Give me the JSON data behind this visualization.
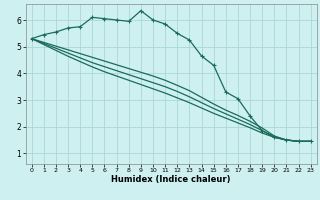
{
  "xlabel": "Humidex (Indice chaleur)",
  "background_color": "#cff0f0",
  "grid_color": "#aad8d8",
  "line_color": "#1a6b5a",
  "x_ticks": [
    0,
    1,
    2,
    3,
    4,
    5,
    6,
    7,
    8,
    9,
    10,
    11,
    12,
    13,
    14,
    15,
    16,
    17,
    18,
    19,
    20,
    21,
    22,
    23
  ],
  "y_ticks": [
    1,
    2,
    3,
    4,
    5,
    6
  ],
  "ylim": [
    0.6,
    6.6
  ],
  "xlim": [
    -0.5,
    23.5
  ],
  "series1_x": [
    0,
    1,
    2,
    3,
    4,
    5,
    6,
    7,
    8,
    9,
    10,
    11,
    12,
    13,
    14,
    15,
    16,
    17,
    18,
    19,
    20,
    21,
    22,
    23
  ],
  "series1_y": [
    5.3,
    5.45,
    5.55,
    5.7,
    5.75,
    6.1,
    6.05,
    6.0,
    5.95,
    6.35,
    6.0,
    5.85,
    5.5,
    5.25,
    4.65,
    4.3,
    3.3,
    3.05,
    2.4,
    1.85,
    1.6,
    1.5,
    1.45,
    1.45
  ],
  "series2_x": [
    0,
    1,
    2,
    3,
    4,
    5,
    6,
    7,
    8,
    9,
    10,
    11,
    12,
    13,
    14,
    15,
    16,
    17,
    18,
    19,
    20,
    21,
    22,
    23
  ],
  "series2_y": [
    5.3,
    5.16,
    5.02,
    4.88,
    4.74,
    4.6,
    4.46,
    4.32,
    4.18,
    4.04,
    3.9,
    3.74,
    3.55,
    3.35,
    3.1,
    2.85,
    2.62,
    2.42,
    2.2,
    1.95,
    1.65,
    1.5,
    1.45,
    1.45
  ],
  "series3_x": [
    0,
    1,
    2,
    3,
    4,
    5,
    6,
    7,
    8,
    9,
    10,
    11,
    12,
    13,
    14,
    15,
    16,
    17,
    18,
    19,
    20,
    21,
    22,
    23
  ],
  "series3_y": [
    5.3,
    5.12,
    4.94,
    4.76,
    4.58,
    4.4,
    4.25,
    4.1,
    3.95,
    3.8,
    3.65,
    3.5,
    3.32,
    3.12,
    2.9,
    2.68,
    2.48,
    2.28,
    2.08,
    1.85,
    1.62,
    1.5,
    1.45,
    1.45
  ],
  "series4_x": [
    0,
    1,
    2,
    3,
    4,
    5,
    6,
    7,
    8,
    9,
    10,
    11,
    12,
    13,
    14,
    15,
    16,
    17,
    18,
    19,
    20,
    21,
    22,
    23
  ],
  "series4_y": [
    5.3,
    5.08,
    4.86,
    4.64,
    4.44,
    4.24,
    4.06,
    3.9,
    3.74,
    3.58,
    3.42,
    3.26,
    3.08,
    2.9,
    2.7,
    2.5,
    2.32,
    2.14,
    1.96,
    1.76,
    1.6,
    1.5,
    1.45,
    1.45
  ]
}
